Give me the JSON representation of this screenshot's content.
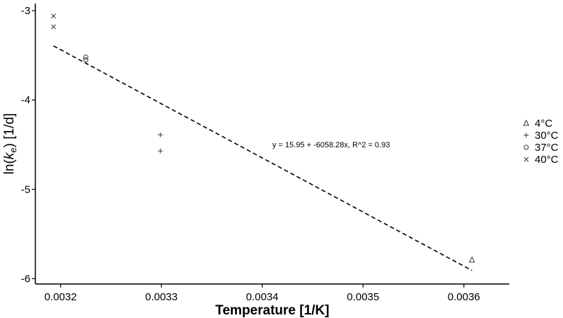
{
  "chart_data": {
    "type": "scatter",
    "xlabel": "Temperature [1/K]",
    "ylabel": {
      "prefix": "ln(",
      "k": "k",
      "sub": "e",
      "suffix": ") [1/d]"
    },
    "xlim": [
      0.003175,
      0.003645
    ],
    "ylim": [
      -6.06,
      -2.92
    ],
    "x_ticks": [
      0.0032,
      0.0033,
      0.0034,
      0.0035,
      0.0036
    ],
    "x_tick_labels": [
      "0.0032",
      "0.0033",
      "0.0034",
      "0.0035",
      "0.0036"
    ],
    "y_ticks": [
      -3,
      -4,
      -5,
      -6
    ],
    "y_tick_labels": [
      "-3",
      "-4",
      "-5",
      "-6"
    ],
    "grid": false,
    "legend_position": "right",
    "series": [
      {
        "name": "4°C",
        "marker": "triangle",
        "points": [
          [
            0.003608,
            -5.79
          ]
        ]
      },
      {
        "name": "30°C",
        "marker": "plus",
        "points": [
          [
            0.003299,
            -4.39
          ],
          [
            0.003299,
            -4.57
          ]
        ]
      },
      {
        "name": "37°C",
        "marker": "circle",
        "points": [
          [
            0.003225,
            -3.52
          ],
          [
            0.003225,
            -3.55
          ]
        ]
      },
      {
        "name": "40°C",
        "marker": "cross",
        "points": [
          [
            0.003193,
            -3.06
          ],
          [
            0.003193,
            -3.18
          ]
        ]
      }
    ],
    "fit": {
      "type": "linear",
      "style": "dashed",
      "intercept": 15.95,
      "slope": -6058.28,
      "x_range": [
        0.003193,
        0.003608
      ],
      "label": "y = 15.95 + -6058.28x, R^2 = 0.93"
    }
  }
}
